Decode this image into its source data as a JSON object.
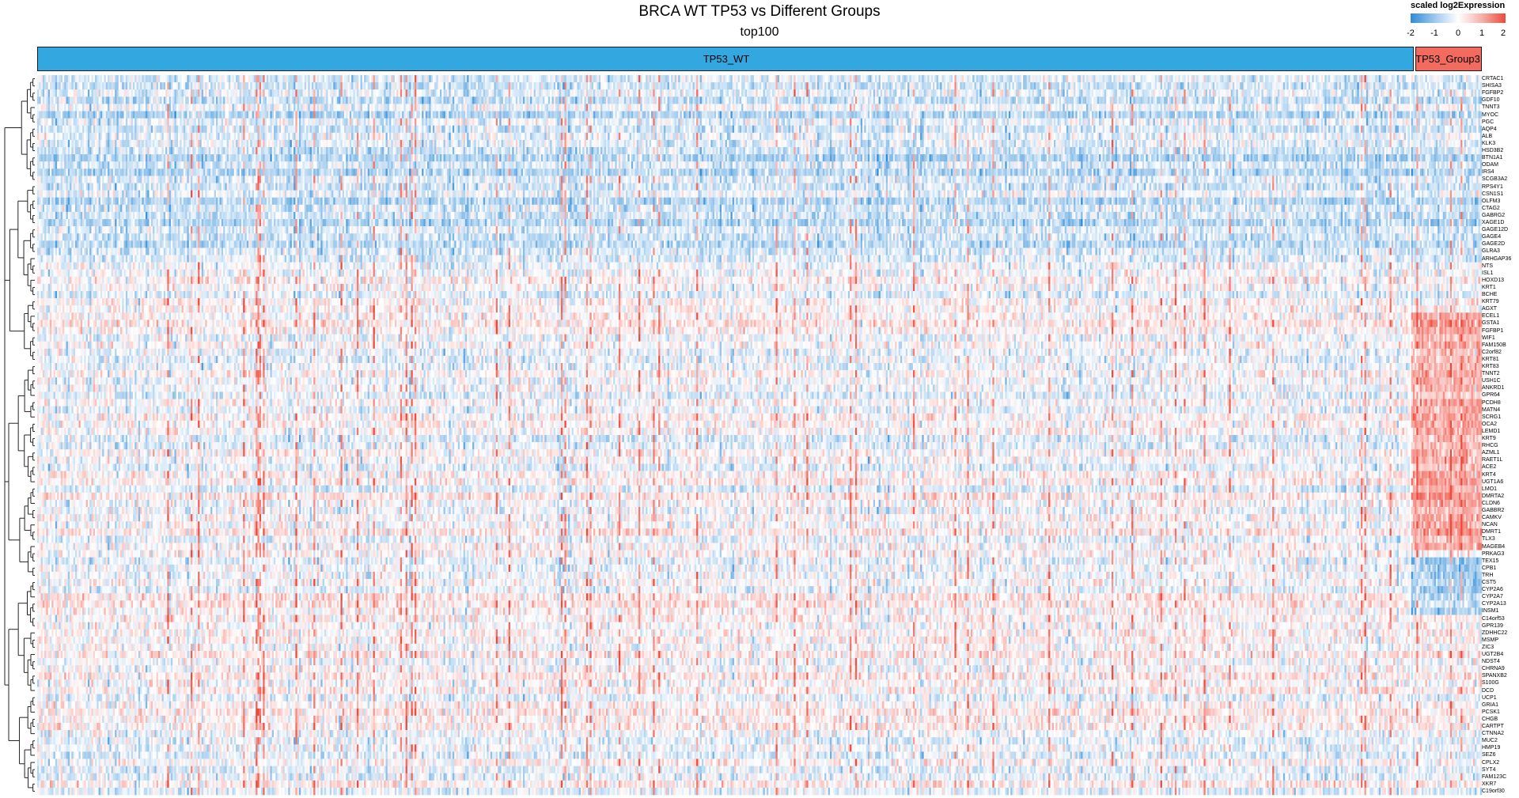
{
  "chart_data": {
    "type": "heatmap",
    "title": "BRCA WT TP53 vs Different Groups",
    "subtitle": "top100",
    "legend": {
      "title": "scaled log2Expression",
      "ticks": [
        "-2",
        "-1",
        "0",
        "1",
        "2"
      ],
      "range": [
        -2,
        2
      ],
      "colors": {
        "low": "#2e8bd6",
        "mid": "#ffffff",
        "high": "#ee4a3c"
      },
      "placement": "top-right"
    },
    "groups": [
      {
        "name": "TP53_WT",
        "color": "#33a7e0",
        "share": 0.951
      },
      {
        "name": "TP53_Group3",
        "color": "#f26b5e",
        "share": 0.049
      }
    ],
    "row_dendrogram": true,
    "genes": [
      "CRTAC1",
      "SHISA3",
      "FGFBP2",
      "GDF10",
      "TNNT3",
      "MYOC",
      "PGC",
      "AQP4",
      "ALB",
      "KLK3",
      "HSD3B2",
      "BTN1A1",
      "ODAM",
      "IRS4",
      "SCGB3A2",
      "RPS4Y1",
      "CSN1S1",
      "OLFM3",
      "CTAG2",
      "GABRG2",
      "XAGE1D",
      "GAGE12D",
      "GAGE4",
      "GAGE2D",
      "GLRA3",
      "ARHGAP36",
      "NTS",
      "ISL1",
      "HOXD13",
      "KRT1",
      "BCHE",
      "KRT79",
      "AGXT",
      "ECEL1",
      "GSTA1",
      "FGFBP1",
      "WIF1",
      "FAM150B",
      "C2orf82",
      "KRT81",
      "KRT83",
      "TNNT2",
      "USH1C",
      "ANKRD1",
      "GPR64",
      "PCDH8",
      "MATN4",
      "SCRG1",
      "OCA2",
      "LEMD1",
      "KRT9",
      "RHCG",
      "AZML1",
      "RAET1L",
      "ACE2",
      "KRT4",
      "UGT1A6",
      "LMO1",
      "DMRTA2",
      "CLDN6",
      "GABBR2",
      "CAMKV",
      "NCAN",
      "DMRT1",
      "TLX3",
      "MAGEB4",
      "PRKAG3",
      "TEX15",
      "CPB1",
      "TRH",
      "CST5",
      "CYP2A6",
      "CYP2A7",
      "CYP2A13",
      "INSM1",
      "C14orf53",
      "GPR139",
      "ZDHHC22",
      "MSMP",
      "ZIC3",
      "UGT2B4",
      "NDST4",
      "CHRNA9",
      "SPANXB2",
      "S100G",
      "DCD",
      "UCP1",
      "GRIA1",
      "PCSK1",
      "CHGB",
      "CARTPT",
      "CTNNA2",
      "MUC2",
      "HMP19",
      "SEZ6",
      "CPLX2",
      "SYT4",
      "FAM123C",
      "XKR7",
      "C19orf30"
    ]
  }
}
